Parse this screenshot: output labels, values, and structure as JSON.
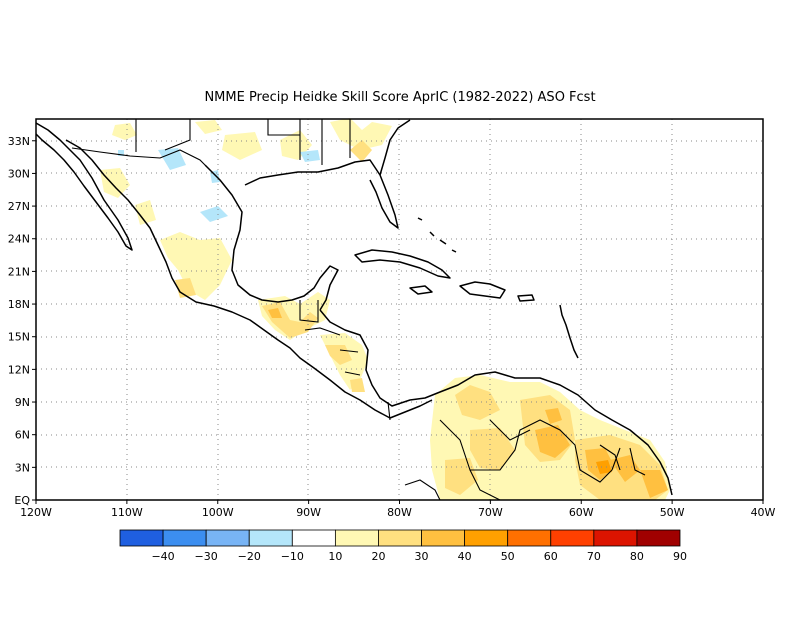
{
  "title": "NMME Precip Heidke Skill Score AprIC (1982-2022) ASO Fcst",
  "map": {
    "lon_ticks": [
      "120W",
      "110W",
      "100W",
      "90W",
      "80W",
      "70W",
      "60W",
      "50W",
      "40W"
    ],
    "lat_ticks": [
      "EQ",
      "3N",
      "6N",
      "9N",
      "12N",
      "15N",
      "18N",
      "21N",
      "24N",
      "27N",
      "30N",
      "33N"
    ],
    "lon_range": [
      -120,
      -40
    ],
    "lat_range": [
      0,
      35
    ]
  },
  "colorbar": {
    "labels": [
      "-40",
      "-30",
      "-20",
      "-10",
      "10",
      "20",
      "30",
      "40",
      "50",
      "60",
      "70",
      "80",
      "90"
    ],
    "colors": [
      "#1f5fe0",
      "#3c8ef0",
      "#78b4f5",
      "#b4e6fa",
      "#ffffff",
      "#fff8b4",
      "#ffe080",
      "#ffc040",
      "#ffa000",
      "#ff7000",
      "#ff4000",
      "#dc1400",
      "#a00000"
    ]
  },
  "legend_icons": {
    "coastline": "coastline-icon",
    "shading": "skill-score-shading"
  }
}
